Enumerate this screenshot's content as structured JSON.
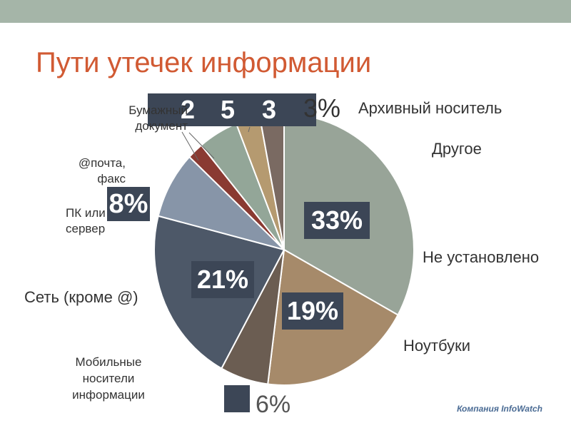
{
  "title": "Пути утечек информации",
  "footer": "Компания InfoWatch",
  "chart_data": {
    "type": "pie",
    "slices": [
      {
        "label": "Не установлено",
        "value": 33,
        "color": "#98a498"
      },
      {
        "label": "Ноутбуки",
        "value": 19,
        "color": "#a68a6a"
      },
      {
        "label": "Мобильные носители информации",
        "value": 6,
        "color": "#6b5d52"
      },
      {
        "label": "Сеть (кроме @)",
        "value": 21,
        "color": "#4d5868"
      },
      {
        "label": "ПК или сервер",
        "value": 8,
        "color": "#8795a8"
      },
      {
        "label": "@почта, факс",
        "value": 2,
        "color": "#8a3a32"
      },
      {
        "label": "Бумажный документ",
        "value": 5,
        "color": "#93a698"
      },
      {
        "label": "Архивный носитель",
        "value": 3,
        "color": "#b59a70"
      },
      {
        "label": "Другое",
        "value": 3,
        "color": "#7a6a62"
      }
    ],
    "data_labels": {
      "top_box": [
        "2",
        "5",
        "3"
      ],
      "top_right": "3%",
      "pc": "8%",
      "unknown": "33%",
      "network": "21%",
      "laptops": "19%",
      "mobile": "6%"
    },
    "labels": {
      "archive": "Архивный носитель",
      "other": "Другое",
      "paper_l1": "Бумажный",
      "paper_l2": "документ",
      "mail_l1": "@почта,",
      "mail_l2": "факс",
      "pc_l1": "ПК или",
      "pc_l2": "сервер",
      "unknown": "Не установлено",
      "network": "Сеть (кроме @)",
      "laptops": "Ноутбуки",
      "mobile_l1": "Мобильные",
      "mobile_l2": "носители",
      "mobile_l3": "информации"
    }
  }
}
